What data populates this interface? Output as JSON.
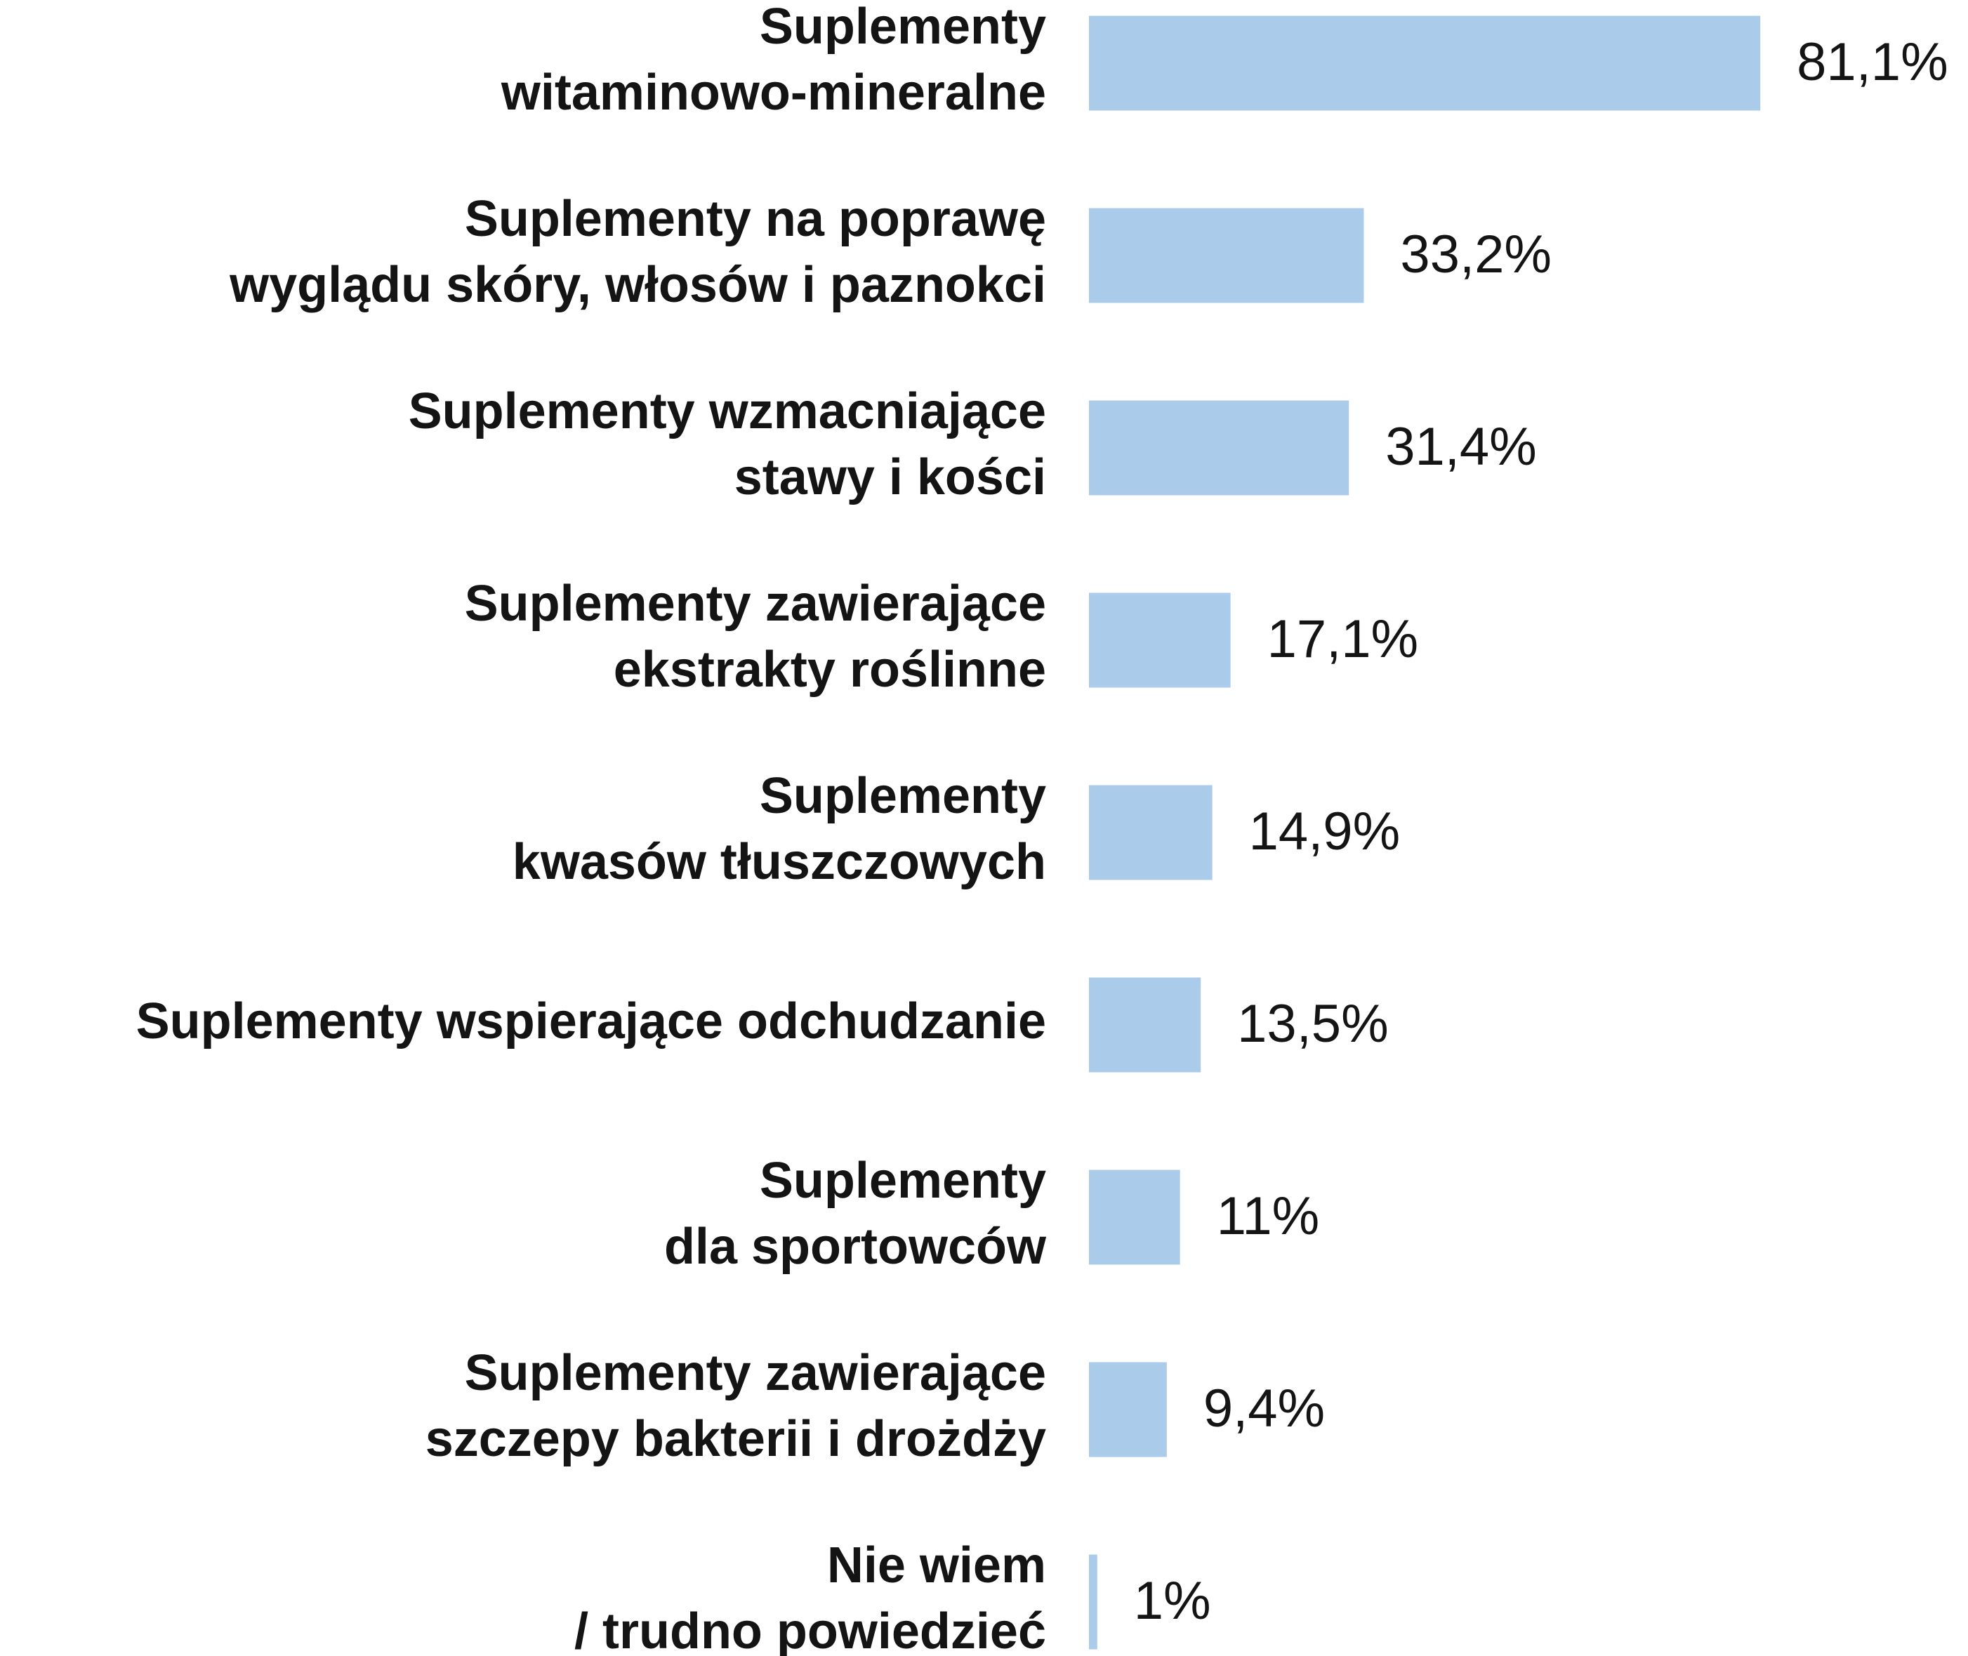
{
  "chart_data": {
    "type": "barh",
    "categories": [
      [
        "Suplementy",
        "witaminowo-mineralne"
      ],
      [
        "Suplementy na poprawę",
        "wyglądu skóry, włosów i paznokci"
      ],
      [
        "Suplementy wzmacniające",
        "stawy i kości"
      ],
      [
        "Suplementy zawierające",
        "ekstrakty roślinne"
      ],
      [
        "Suplementy",
        "kwasów tłuszczowych"
      ],
      [
        "Suplementy wspierające odchudzanie"
      ],
      [
        "Suplementy",
        "dla sportowców"
      ],
      [
        "Suplementy zawierające",
        "szczepy bakterii i drożdży"
      ],
      [
        "Nie wiem",
        "/ trudno powiedzieć"
      ]
    ],
    "values": [
      81.1,
      33.2,
      31.4,
      17.1,
      14.9,
      13.5,
      11,
      9.4,
      1
    ],
    "value_labels": [
      "81,1%",
      "33,2%",
      "31,4%",
      "17,1%",
      "14,9%",
      "13,5%",
      "11%",
      "9,4%",
      "1%"
    ],
    "color": "#abcbea",
    "xlim": [
      0,
      100
    ]
  }
}
